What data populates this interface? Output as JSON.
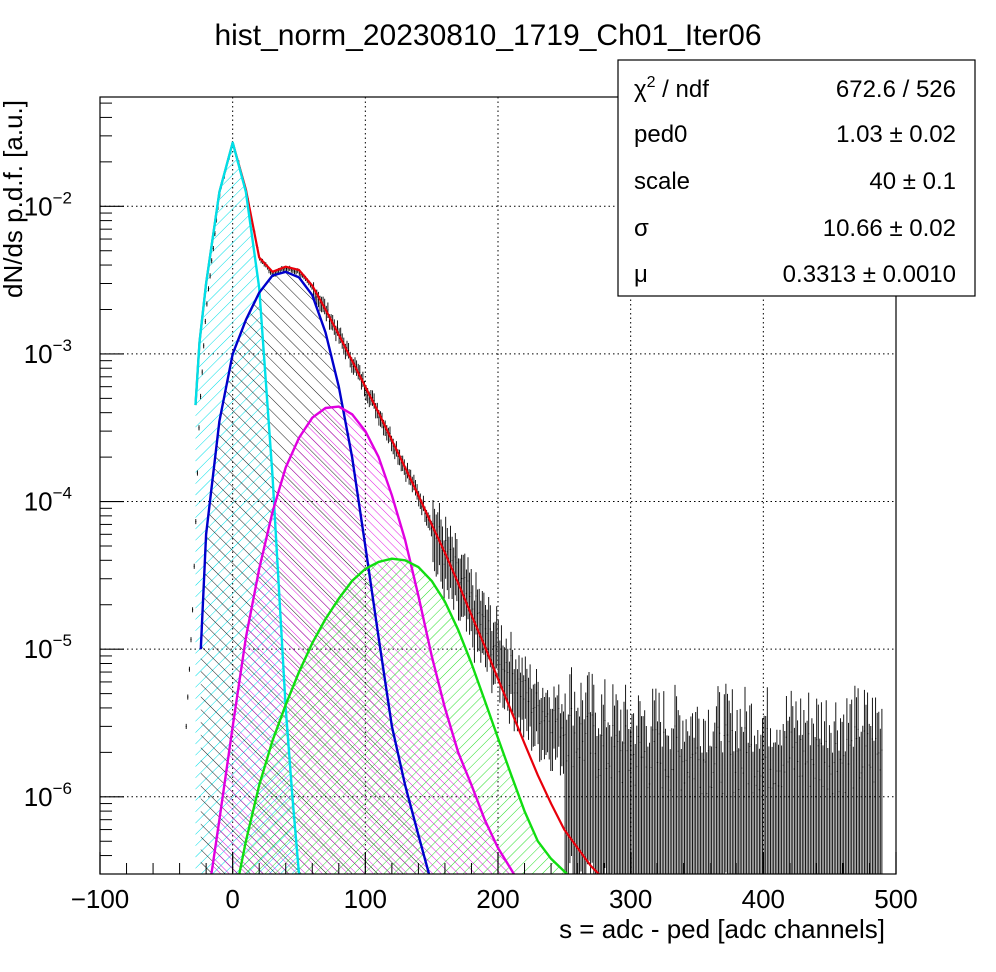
{
  "chart_data": {
    "type": "line",
    "title": "hist_norm_20230810_1719_Ch01_Iter06",
    "xlabel": "s = adc - ped [adc channels]",
    "ylabel": "dN/ds p.d.f. [a.u.]",
    "xlim": [
      -100,
      500
    ],
    "ylim": [
      3e-07,
      0.055
    ],
    "yscale": "log",
    "grid": true,
    "x_ticks": [
      -100,
      0,
      100,
      200,
      300,
      400,
      500
    ],
    "x_tick_labels": [
      "−100",
      "0",
      "100",
      "200",
      "300",
      "400",
      "500"
    ],
    "y_ticks": [
      {
        "value": 1e-06,
        "base": "10",
        "exp": "−6"
      },
      {
        "value": 1e-05,
        "base": "10",
        "exp": "−5"
      },
      {
        "value": 0.0001,
        "base": "10",
        "exp": "−4"
      },
      {
        "value": 0.001,
        "base": "10",
        "exp": "−3"
      },
      {
        "value": 0.01,
        "base": "10",
        "exp": "−2"
      }
    ],
    "series": [
      {
        "role": "histogram",
        "color": "#000000",
        "x": [
          -35,
          -30,
          -25,
          -20,
          -10,
          0,
          10,
          20,
          30,
          40,
          50,
          60,
          70,
          80,
          90,
          100,
          110,
          120,
          130,
          140,
          150,
          160,
          170,
          180,
          190,
          200,
          210,
          220,
          230,
          240,
          250,
          260,
          280,
          300,
          350,
          400,
          450,
          490
        ],
        "y": [
          3e-06,
          2e-05,
          0.0004,
          0.002,
          0.012,
          0.027,
          0.013,
          0.0045,
          0.0035,
          0.0038,
          0.0036,
          0.0028,
          0.002,
          0.00135,
          0.0009,
          0.0006,
          0.0004,
          0.00026,
          0.00017,
          0.00011,
          7e-05,
          4.5e-05,
          3e-05,
          2e-05,
          1.4e-05,
          1e-05,
          7e-06,
          5e-06,
          4e-06,
          3.5e-06,
          3e-06,
          2.5e-06,
          2e-06,
          1.8e-06,
          1.8e-06,
          1.8e-06,
          1.8e-06,
          1.8e-06
        ]
      },
      {
        "role": "total-fit",
        "color": "#e8000b",
        "x": [
          -28,
          -25,
          -20,
          -10,
          0,
          10,
          20,
          30,
          40,
          50,
          60,
          70,
          80,
          90,
          100,
          110,
          120,
          130,
          140,
          150,
          160,
          170,
          180,
          190,
          200,
          210,
          220,
          230,
          240,
          250,
          260,
          270,
          276
        ],
        "y": [
          0.00045,
          0.0012,
          0.003,
          0.0125,
          0.027,
          0.013,
          0.0045,
          0.0036,
          0.0039,
          0.0037,
          0.0029,
          0.002,
          0.00135,
          0.0009,
          0.0006,
          0.0004,
          0.00026,
          0.00017,
          0.00011,
          7e-05,
          4.5e-05,
          2.8e-05,
          1.7e-05,
          1.05e-05,
          6.3e-06,
          3.8e-06,
          2.3e-06,
          1.4e-06,
          9e-07,
          6e-07,
          4.5e-07,
          3.4e-07,
          3e-07
        ]
      },
      {
        "role": "component-0",
        "color": "#00e0e8",
        "fill": true,
        "x": [
          -28,
          -25,
          -20,
          -10,
          0,
          10,
          20,
          30,
          40,
          45,
          50
        ],
        "y": [
          0.00045,
          0.0012,
          0.003,
          0.0125,
          0.027,
          0.0125,
          0.0028,
          0.00015,
          4e-06,
          1e-06,
          3e-07
        ]
      },
      {
        "role": "component-1",
        "color": "#0000cc",
        "fill": true,
        "x": [
          -24,
          -20,
          -10,
          0,
          10,
          20,
          30,
          40,
          50,
          60,
          70,
          80,
          90,
          100,
          110,
          120,
          130,
          140,
          148
        ],
        "y": [
          1e-05,
          6e-05,
          0.00035,
          0.001,
          0.0017,
          0.0026,
          0.0034,
          0.0036,
          0.0033,
          0.0025,
          0.0014,
          0.0006,
          0.0002,
          5e-05,
          1.2e-05,
          3e-06,
          1.2e-06,
          5.5e-07,
          3e-07
        ]
      },
      {
        "role": "component-2",
        "color": "#e000e0",
        "fill": true,
        "x": [
          -16,
          -10,
          0,
          10,
          20,
          30,
          40,
          50,
          60,
          70,
          80,
          90,
          100,
          110,
          120,
          130,
          140,
          150,
          160,
          170,
          180,
          190,
          200,
          212
        ],
        "y": [
          3e-07,
          7e-07,
          3e-06,
          1.2e-05,
          3.5e-05,
          8.5e-05,
          0.00017,
          0.00027,
          0.00037,
          0.00043,
          0.00044,
          0.00039,
          0.0003,
          0.0002,
          0.00011,
          5.5e-05,
          2.3e-05,
          9e-06,
          4e-06,
          2e-06,
          1.2e-06,
          7e-07,
          4.5e-07,
          3e-07
        ]
      },
      {
        "role": "component-3",
        "color": "#11dd11",
        "fill": true,
        "x": [
          5,
          10,
          20,
          30,
          40,
          50,
          60,
          70,
          80,
          90,
          100,
          110,
          120,
          130,
          140,
          150,
          160,
          170,
          180,
          190,
          200,
          210,
          220,
          230,
          240,
          252
        ],
        "y": [
          3e-07,
          5e-07,
          1.2e-06,
          2.4e-06,
          4.2e-06,
          7e-06,
          1.1e-05,
          1.6e-05,
          2.2e-05,
          2.9e-05,
          3.5e-05,
          3.9e-05,
          4.1e-05,
          4e-05,
          3.6e-05,
          2.9e-05,
          2.1e-05,
          1.35e-05,
          8e-06,
          4.5e-06,
          2.5e-06,
          1.4e-06,
          8e-07,
          5e-07,
          3.8e-07,
          3e-07
        ]
      }
    ]
  },
  "stats_box": {
    "rows": [
      {
        "key_main": "χ",
        "key_sup": "2",
        "key_rest": " / ndf",
        "value": "672.6 / 526"
      },
      {
        "key_main": "ped0",
        "key_sup": "",
        "key_rest": "",
        "value": "1.03 ± 0.02"
      },
      {
        "key_main": "scale",
        "key_sup": "",
        "key_rest": "",
        "value": "40 ± 0.1"
      },
      {
        "key_main": "σ",
        "key_sup": "",
        "key_rest": "",
        "value": "10.66 ± 0.02"
      },
      {
        "key_main": "μ",
        "key_sup": "",
        "key_rest": "",
        "value": "0.3313 ± 0.0010"
      }
    ]
  }
}
